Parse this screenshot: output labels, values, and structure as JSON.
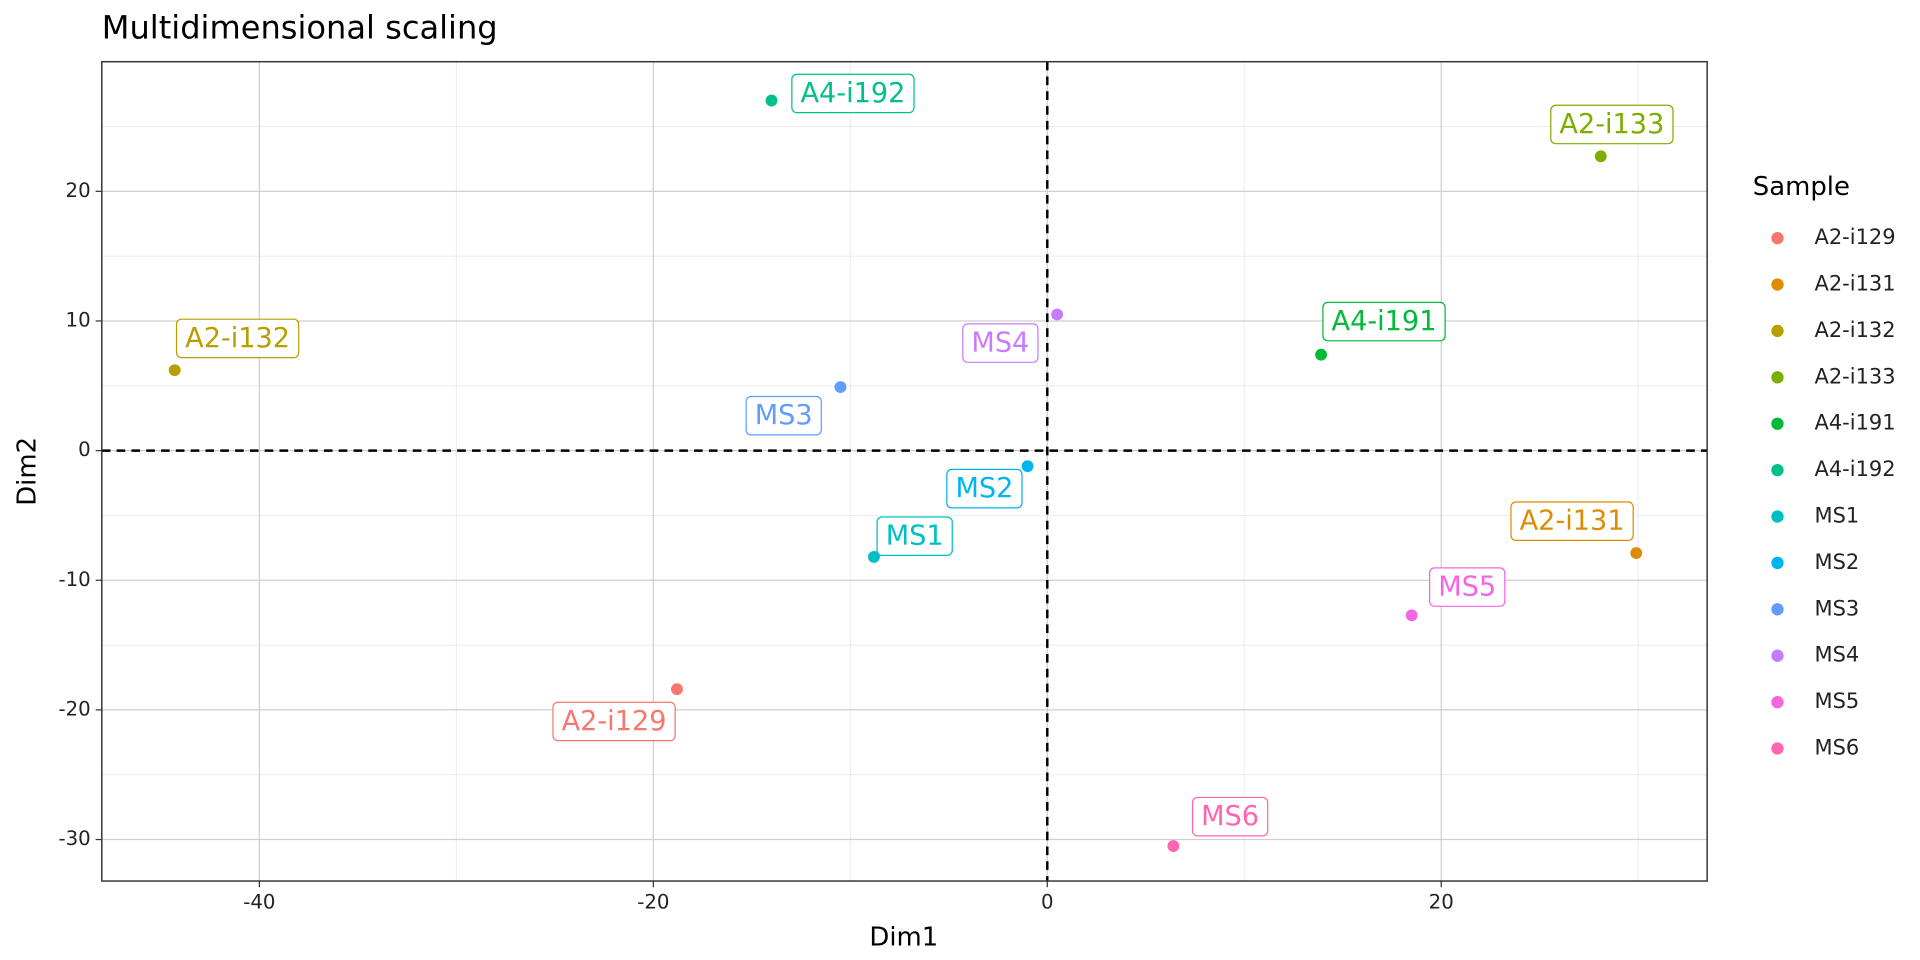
{
  "chart_data": {
    "type": "scatter",
    "title": "Multidimensional scaling",
    "x_label": "Dim1",
    "y_label": "Dim2",
    "legend_title": "Sample",
    "legend_position": "right",
    "grid": true,
    "xlim": [
      -48,
      33.5
    ],
    "ylim": [
      -33.2,
      30
    ],
    "xticks": [
      -40,
      -20,
      0,
      20
    ],
    "yticks": [
      -30,
      -20,
      -10,
      0,
      10,
      20
    ],
    "hline": 0,
    "vline": 0,
    "series": [
      {
        "name": "A2-i129",
        "color": "#F8766D",
        "x": [
          -18.8
        ],
        "values": [
          -18.4
        ]
      },
      {
        "name": "A2-i131",
        "color": "#DE8C00",
        "x": [
          29.9
        ],
        "values": [
          -7.9
        ]
      },
      {
        "name": "A2-i132",
        "color": "#B79F00",
        "x": [
          -44.3
        ],
        "values": [
          6.2
        ]
      },
      {
        "name": "A2-i133",
        "color": "#7CAE00",
        "x": [
          28.1
        ],
        "values": [
          22.7
        ]
      },
      {
        "name": "A4-i191",
        "color": "#00BA38",
        "x": [
          13.9
        ],
        "values": [
          7.4
        ]
      },
      {
        "name": "A4-i192",
        "color": "#00C08B",
        "x": [
          -14.0
        ],
        "values": [
          27.0
        ]
      },
      {
        "name": "MS1",
        "color": "#00BFC4",
        "x": [
          -8.8
        ],
        "values": [
          -8.2
        ]
      },
      {
        "name": "MS2",
        "color": "#00B4F0",
        "x": [
          -1.0
        ],
        "values": [
          -1.2
        ]
      },
      {
        "name": "MS3",
        "color": "#619CFF",
        "x": [
          -10.5
        ],
        "values": [
          4.9
        ]
      },
      {
        "name": "MS4",
        "color": "#C77CFF",
        "x": [
          0.5
        ],
        "values": [
          10.5
        ]
      },
      {
        "name": "MS5",
        "color": "#F564E3",
        "x": [
          18.5
        ],
        "values": [
          -12.7
        ]
      },
      {
        "name": "MS6",
        "color": "#FF64B0",
        "x": [
          6.4
        ],
        "values": [
          -30.5
        ]
      }
    ]
  }
}
